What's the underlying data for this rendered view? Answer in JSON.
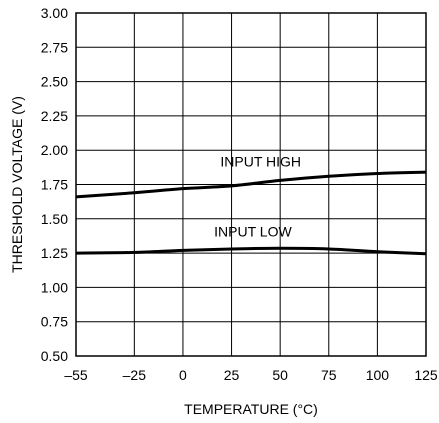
{
  "chart_data": {
    "type": "line",
    "xlabel": "TEMPERATURE (°C)",
    "ylabel": "THRESHOLD VOLTAGE (V)",
    "xlim": [
      -55,
      125
    ],
    "ylim": [
      0.5,
      3.0
    ],
    "x_ticks": [
      -55,
      -25,
      0,
      25,
      50,
      75,
      100,
      125
    ],
    "x_tick_labels": [
      "–55",
      "–25",
      "0",
      "25",
      "50",
      "75",
      "100",
      "125"
    ],
    "y_ticks": [
      0.5,
      0.75,
      1.0,
      1.25,
      1.5,
      1.75,
      2.0,
      2.25,
      2.5,
      2.75,
      3.0
    ],
    "y_tick_labels": [
      "0.50",
      "0.75",
      "1.00",
      "1.25",
      "1.50",
      "1.75",
      "2.00",
      "2.25",
      "2.50",
      "2.75",
      "3.00"
    ],
    "grid": true,
    "series": [
      {
        "name": "INPUT HIGH",
        "x": [
          -55,
          -25,
          0,
          25,
          50,
          75,
          100,
          125
        ],
        "y": [
          1.66,
          1.69,
          1.72,
          1.74,
          1.78,
          1.81,
          1.83,
          1.84
        ]
      },
      {
        "name": "INPUT LOW",
        "x": [
          -55,
          -25,
          0,
          25,
          50,
          75,
          100,
          125
        ],
        "y": [
          1.25,
          1.255,
          1.27,
          1.28,
          1.285,
          1.28,
          1.26,
          1.245
        ]
      }
    ],
    "annotations": [
      {
        "text": "INPUT HIGH",
        "x": 40,
        "y": 1.88
      },
      {
        "text": "INPUT LOW",
        "x": 36,
        "y": 1.37
      }
    ],
    "line_color": "#000000"
  }
}
